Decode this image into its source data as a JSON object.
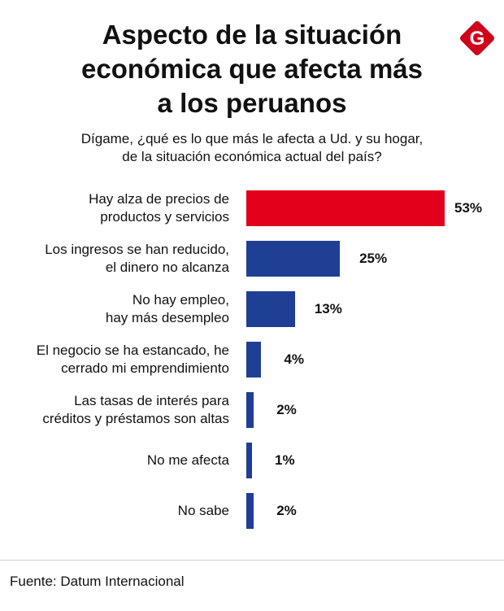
{
  "header": {
    "title_lines": [
      "Aspecto de la situación",
      "económica que afecta más",
      "a los peruanos"
    ],
    "subtitle_lines": [
      "Dígame, ¿qué es lo que más le afecta a Ud. y su hogar,",
      "de la situación económica actual del país?"
    ],
    "logo_letter": "G",
    "logo_color": "#d0021b"
  },
  "chart_data": {
    "type": "bar",
    "orientation": "horizontal",
    "categories": [
      [
        "Hay alza de precios de",
        "productos y servicios"
      ],
      [
        "Los ingresos se han reducido,",
        "el dinero no alcanza"
      ],
      [
        "No hay empleo,",
        "hay más desempleo"
      ],
      [
        "El negocio se ha estancado, he",
        "cerrado mi emprendimiento"
      ],
      [
        "Las tasas de interés para",
        "créditos y préstamos son altas"
      ],
      [
        "No me afecta"
      ],
      [
        "No sabe"
      ]
    ],
    "values": [
      53,
      25,
      13,
      4,
      2,
      1,
      2
    ],
    "value_labels": [
      "53%",
      "25%",
      "13%",
      "4%",
      "2%",
      "1%",
      "2%"
    ],
    "unit": "%",
    "colors": [
      "#e2001a",
      "#1f3f95",
      "#1f3f95",
      "#1f3f95",
      "#1f3f95",
      "#1f3f95",
      "#1f3f95"
    ],
    "grid": false,
    "legend": "none"
  },
  "footer": {
    "source": "Fuente: Datum Internacional"
  }
}
